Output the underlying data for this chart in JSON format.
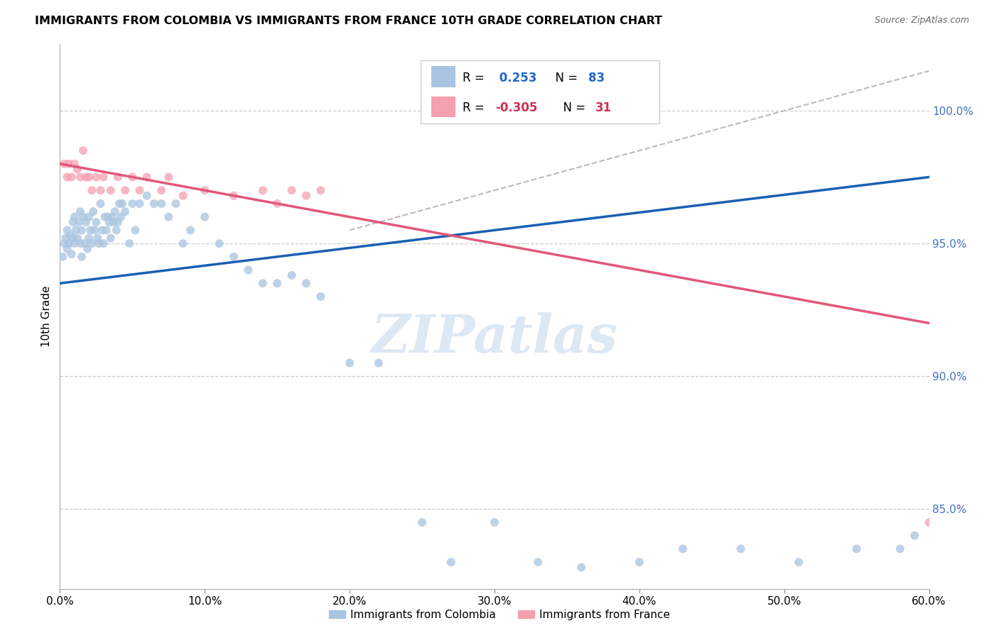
{
  "title": "IMMIGRANTS FROM COLOMBIA VS IMMIGRANTS FROM FRANCE 10TH GRADE CORRELATION CHART",
  "source": "Source: ZipAtlas.com",
  "xlabel_colombia": "Immigrants from Colombia",
  "xlabel_france": "Immigrants from France",
  "ylabel": "10th Grade",
  "xlim": [
    0.0,
    60.0
  ],
  "ylim": [
    82.0,
    102.5
  ],
  "xticks": [
    0.0,
    10.0,
    20.0,
    30.0,
    40.0,
    50.0,
    60.0
  ],
  "xtick_labels": [
    "0.0%",
    "10.0%",
    "20.0%",
    "30.0%",
    "40.0%",
    "50.0%",
    "60.0%"
  ],
  "yticks": [
    85.0,
    90.0,
    95.0,
    100.0
  ],
  "ytick_labels": [
    "85.0%",
    "90.0%",
    "95.0%",
    "100.0%"
  ],
  "R_colombia": 0.253,
  "N_colombia": 83,
  "R_france": -0.305,
  "N_france": 31,
  "colombia_color": "#a8c4e0",
  "france_color": "#f4a0b0",
  "colombia_line_color": "#1a5fb4",
  "france_line_color": "#e05878",
  "dashed_line_color": "#bbbbbb",
  "watermark_color": "#dde8f5",
  "colombia_x": [
    0.2,
    0.3,
    0.4,
    0.5,
    0.5,
    0.6,
    0.7,
    0.8,
    0.9,
    0.9,
    1.0,
    1.0,
    1.1,
    1.2,
    1.3,
    1.4,
    1.4,
    1.5,
    1.5,
    1.6,
    1.7,
    1.8,
    1.9,
    2.0,
    2.0,
    2.1,
    2.2,
    2.3,
    2.4,
    2.5,
    2.6,
    2.7,
    2.8,
    2.9,
    3.0,
    3.1,
    3.2,
    3.3,
    3.4,
    3.5,
    3.6,
    3.7,
    3.8,
    3.9,
    4.0,
    4.1,
    4.2,
    4.3,
    4.5,
    4.8,
    5.0,
    5.2,
    5.5,
    6.0,
    6.5,
    7.0,
    7.5,
    8.0,
    8.5,
    9.0,
    10.0,
    11.0,
    12.0,
    13.0,
    14.0,
    15.0,
    16.0,
    17.0,
    18.0,
    20.0,
    22.0,
    25.0,
    27.0,
    30.0,
    33.0,
    36.0,
    40.0,
    43.0,
    47.0,
    51.0,
    55.0,
    58.0,
    59.0
  ],
  "colombia_y": [
    94.5,
    95.0,
    95.2,
    94.8,
    95.5,
    95.0,
    95.3,
    94.6,
    95.2,
    95.8,
    95.0,
    96.0,
    95.5,
    95.2,
    95.8,
    95.0,
    96.2,
    94.5,
    95.5,
    96.0,
    95.0,
    95.8,
    94.8,
    95.2,
    96.0,
    95.5,
    95.0,
    96.2,
    95.5,
    95.8,
    95.2,
    95.0,
    96.5,
    95.5,
    95.0,
    96.0,
    95.5,
    96.0,
    95.8,
    95.2,
    96.0,
    95.8,
    96.2,
    95.5,
    95.8,
    96.5,
    96.0,
    96.5,
    96.2,
    95.0,
    96.5,
    95.5,
    96.5,
    96.8,
    96.5,
    96.5,
    96.0,
    96.5,
    95.0,
    95.5,
    96.0,
    95.0,
    94.5,
    94.0,
    93.5,
    93.5,
    93.8,
    93.5,
    93.0,
    90.5,
    90.5,
    84.5,
    83.0,
    84.5,
    83.0,
    82.8,
    83.0,
    83.5,
    83.5,
    83.0,
    83.5,
    83.5,
    84.0
  ],
  "france_x": [
    0.3,
    0.5,
    0.6,
    0.8,
    1.0,
    1.2,
    1.4,
    1.6,
    1.8,
    2.0,
    2.2,
    2.5,
    2.8,
    3.0,
    3.5,
    4.0,
    4.5,
    5.0,
    5.5,
    6.0,
    7.0,
    7.5,
    8.5,
    10.0,
    12.0,
    14.0,
    15.0,
    16.0,
    17.0,
    18.0,
    60.0
  ],
  "france_y": [
    98.0,
    97.5,
    98.0,
    97.5,
    98.0,
    97.8,
    97.5,
    98.5,
    97.5,
    97.5,
    97.0,
    97.5,
    97.0,
    97.5,
    97.0,
    97.5,
    97.0,
    97.5,
    97.0,
    97.5,
    97.0,
    97.5,
    96.8,
    97.0,
    96.8,
    97.0,
    96.5,
    97.0,
    96.8,
    97.0,
    84.5
  ],
  "blue_line_x0": 0.0,
  "blue_line_y0": 93.5,
  "blue_line_x1": 60.0,
  "blue_line_y1": 97.5,
  "pink_line_x0": 0.0,
  "pink_line_y0": 98.0,
  "pink_line_x1": 60.0,
  "pink_line_y1": 92.0,
  "dash_line_x0": 20.0,
  "dash_line_y0": 95.5,
  "dash_line_x1": 60.0,
  "dash_line_y1": 101.5
}
